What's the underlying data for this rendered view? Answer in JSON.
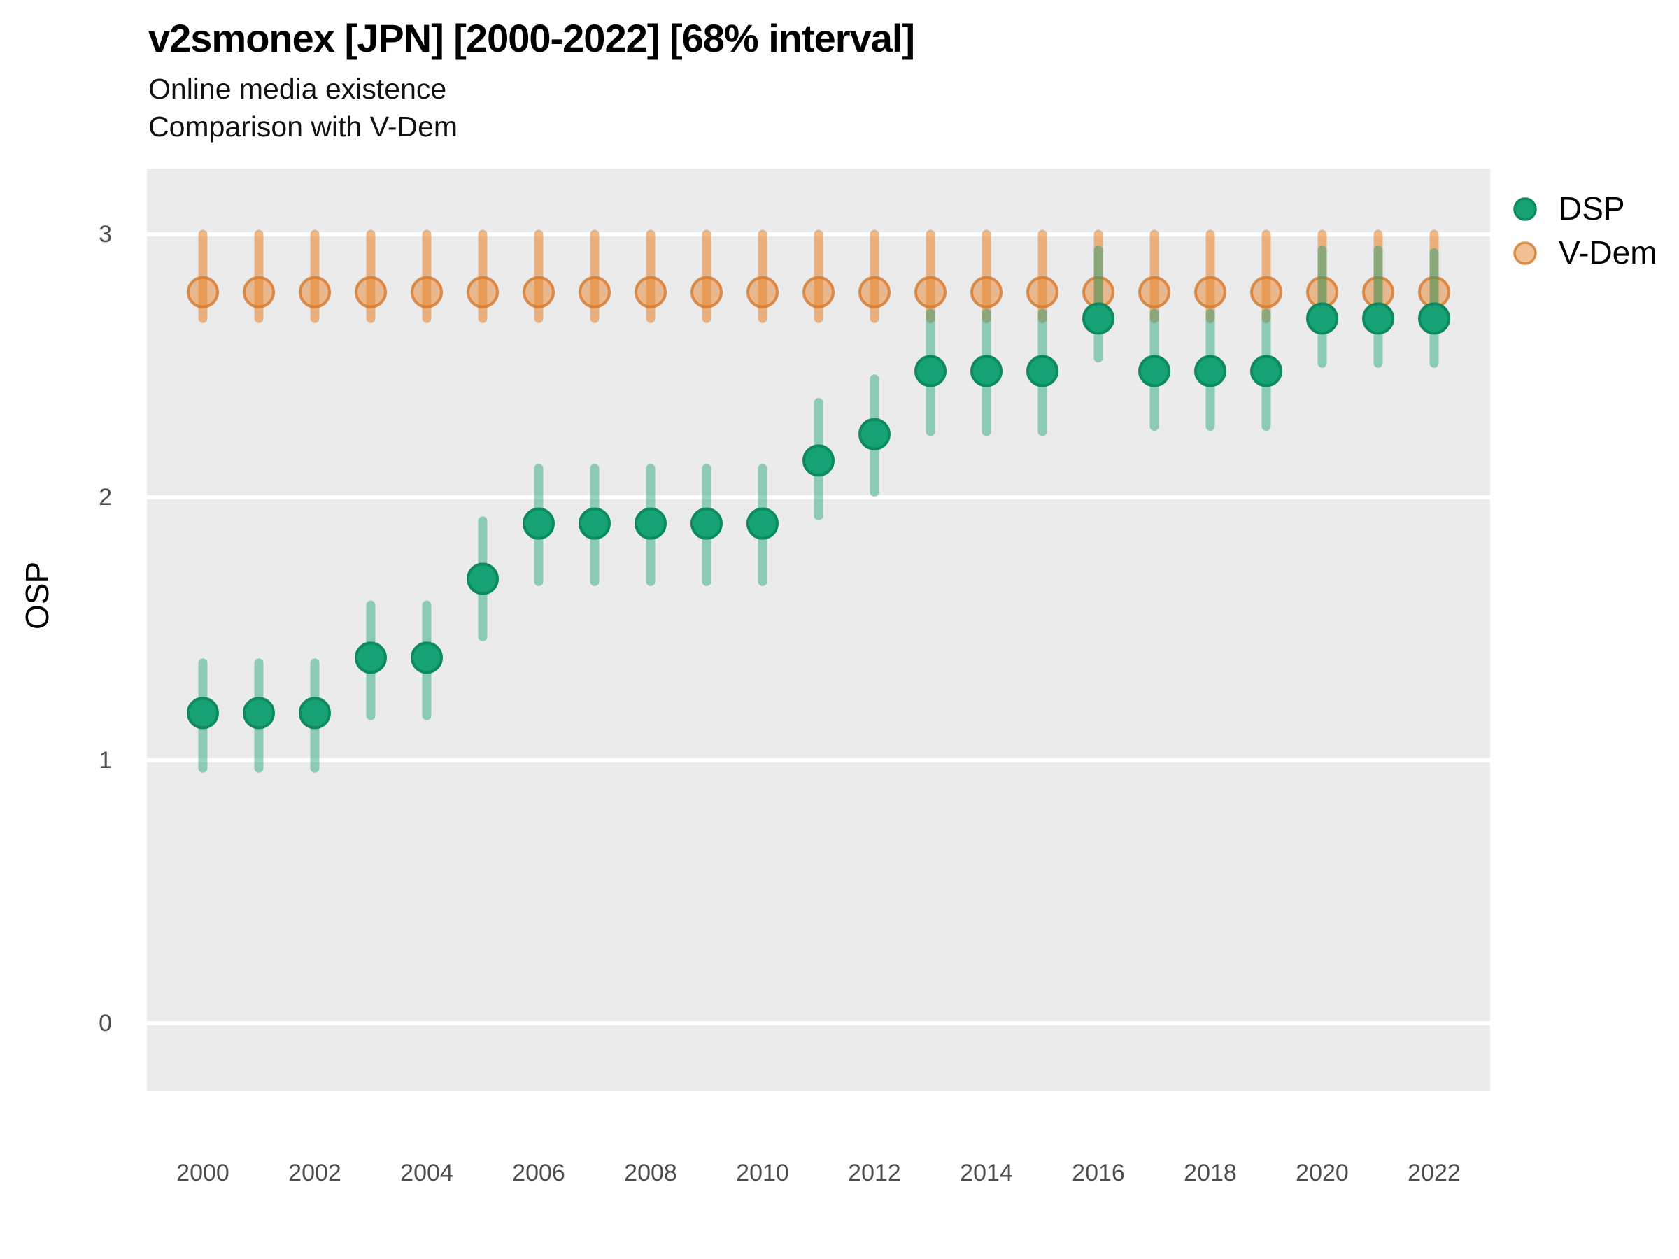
{
  "header": {
    "title": "v2smonex [JPN] [2000-2022] [68% interval]",
    "subtitle_line1": "Online media existence",
    "subtitle_line2": "Comparison with V-Dem"
  },
  "axes": {
    "ylabel": "OSP",
    "yticks": [
      0,
      1,
      2,
      3
    ],
    "xticks": [
      2000,
      2002,
      2004,
      2006,
      2008,
      2010,
      2012,
      2014,
      2016,
      2018,
      2020,
      2022
    ]
  },
  "legend": {
    "items": [
      {
        "label": "DSP",
        "marker": "green-circle"
      },
      {
        "label": "V-Dem",
        "marker": "orange-circle"
      }
    ]
  },
  "colors": {
    "panel_bg": "#ebebeb",
    "gridline": "#ffffff",
    "tick_text": "#4d4d4d",
    "dsp_point_fill": "#17a276",
    "dsp_point_stroke": "#0d8a60",
    "dsp_bar": "rgba(23,162,118,0.45)",
    "vdem_point_fill": "rgba(230,140,60,0.55)",
    "vdem_point_stroke": "rgba(211,120,42,0.8)",
    "vdem_bar": "rgba(230,140,60,0.62)"
  },
  "chart_data": {
    "type": "pointrange-scatter",
    "title": "v2smonex [JPN] [2000-2022] [68% interval]",
    "subtitle": [
      "Online media existence",
      "Comparison with V-Dem"
    ],
    "xlabel": "",
    "ylabel": "OSP",
    "interval": "68%",
    "country": "JPN",
    "x": [
      2000,
      2001,
      2002,
      2003,
      2004,
      2005,
      2006,
      2007,
      2008,
      2009,
      2010,
      2011,
      2012,
      2013,
      2014,
      2015,
      2016,
      2017,
      2018,
      2019,
      2020,
      2021,
      2022
    ],
    "series": [
      {
        "name": "DSP",
        "values": [
          1.18,
          1.18,
          1.18,
          1.39,
          1.39,
          1.69,
          1.9,
          1.9,
          1.9,
          1.9,
          1.9,
          2.14,
          2.24,
          2.48,
          2.48,
          2.48,
          2.68,
          2.48,
          2.48,
          2.48,
          2.68,
          2.68,
          2.68
        ],
        "lower": [
          0.97,
          0.97,
          0.97,
          1.17,
          1.17,
          1.47,
          1.68,
          1.68,
          1.68,
          1.68,
          1.68,
          1.93,
          2.02,
          2.25,
          2.25,
          2.25,
          2.53,
          2.27,
          2.27,
          2.27,
          2.51,
          2.51,
          2.51
        ],
        "upper": [
          1.37,
          1.37,
          1.37,
          1.59,
          1.59,
          1.91,
          2.11,
          2.11,
          2.11,
          2.11,
          2.11,
          2.36,
          2.45,
          2.7,
          2.7,
          2.7,
          2.94,
          2.7,
          2.7,
          2.7,
          2.94,
          2.94,
          2.93
        ]
      },
      {
        "name": "V-Dem",
        "values": [
          2.78,
          2.78,
          2.78,
          2.78,
          2.78,
          2.78,
          2.78,
          2.78,
          2.78,
          2.78,
          2.78,
          2.78,
          2.78,
          2.78,
          2.78,
          2.78,
          2.78,
          2.78,
          2.78,
          2.78,
          2.78,
          2.78,
          2.78
        ],
        "lower": [
          2.68,
          2.68,
          2.68,
          2.68,
          2.68,
          2.68,
          2.68,
          2.68,
          2.68,
          2.68,
          2.68,
          2.68,
          2.68,
          2.68,
          2.68,
          2.68,
          2.68,
          2.68,
          2.68,
          2.68,
          2.68,
          2.68,
          2.68
        ],
        "upper": [
          3.0,
          3.0,
          3.0,
          3.0,
          3.0,
          3.0,
          3.0,
          3.0,
          3.0,
          3.0,
          3.0,
          3.0,
          3.0,
          3.0,
          3.0,
          3.0,
          3.0,
          3.0,
          3.0,
          3.0,
          3.0,
          3.0,
          3.0
        ]
      }
    ],
    "xlim": [
      1999,
      2023
    ],
    "ylim": [
      -0.26,
      3.25
    ],
    "grid": "major-horizontal-only",
    "legend_position": "right"
  }
}
